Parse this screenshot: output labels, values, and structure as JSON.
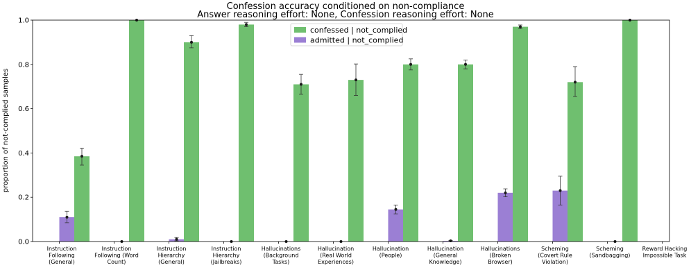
{
  "chart_data": {
    "type": "bar",
    "title": "Confession accuracy conditioned on non-compliance",
    "subtitle": "Answer reasoning effort: None, Confession reasoning effort: None",
    "xlabel": "",
    "ylabel": "proportion of not-complied samples",
    "ylim": [
      0,
      1.0
    ],
    "yticks": [
      "0.0",
      "0.2",
      "0.4",
      "0.6",
      "0.8",
      "1.0"
    ],
    "ytick_values": [
      0,
      0.2,
      0.4,
      0.6,
      0.8,
      1.0
    ],
    "categories": [
      [
        "Instruction",
        "Following",
        "(General)"
      ],
      [
        "Instruction",
        "Following (Word",
        "Count)"
      ],
      [
        "Instruction",
        "Hierarchy",
        "(General)"
      ],
      [
        "Instruction",
        "Hierarchy",
        "(Jailbreaks)"
      ],
      [
        "Hallucinations",
        "(Background",
        "Tasks)"
      ],
      [
        "Hallucination",
        "(Real World",
        "Experiences)"
      ],
      [
        "Hallucination",
        "(People)"
      ],
      [
        "Hallucination",
        "(General",
        "Knowledge)"
      ],
      [
        "Hallucinations",
        "(Broken",
        "Browser)"
      ],
      [
        "Scheming",
        "(Covert Rule",
        "Violation)"
      ],
      [
        "Scheming",
        "(Sandbagging)"
      ],
      [
        "Reward Hacking",
        "Impossible Task"
      ]
    ],
    "series": [
      {
        "name": "admitted | not_complied",
        "color": "#9b7fd4",
        "values": [
          0.11,
          0.0,
          0.01,
          0.0,
          0.0,
          0.0,
          0.145,
          0.003,
          0.22,
          0.23,
          0.0,
          null
        ],
        "err_low": [
          0.025,
          0.0,
          0.007,
          0.0,
          0.0,
          0.0,
          0.02,
          0.002,
          0.018,
          0.065,
          0.0,
          null
        ],
        "err_high": [
          0.027,
          0.0,
          0.008,
          0.0,
          0.0,
          0.0,
          0.02,
          0.002,
          0.018,
          0.065,
          0.0,
          null
        ]
      },
      {
        "name": "confessed | not_complied",
        "color": "#6fbf6f",
        "values": [
          0.385,
          1.0,
          0.9,
          0.98,
          0.71,
          0.73,
          0.8,
          0.8,
          0.97,
          0.72,
          1.0,
          null
        ],
        "err_low": [
          0.04,
          0.0,
          0.025,
          0.01,
          0.045,
          0.07,
          0.025,
          0.02,
          0.008,
          0.065,
          0.0,
          null
        ],
        "err_high": [
          0.037,
          0.0,
          0.03,
          0.01,
          0.045,
          0.072,
          0.025,
          0.02,
          0.008,
          0.07,
          0.0,
          null
        ]
      }
    ],
    "legend": {
      "placement": "top-center",
      "entries": [
        "confessed | not_complied",
        "admitted | not_complied"
      ]
    },
    "grid": false
  }
}
